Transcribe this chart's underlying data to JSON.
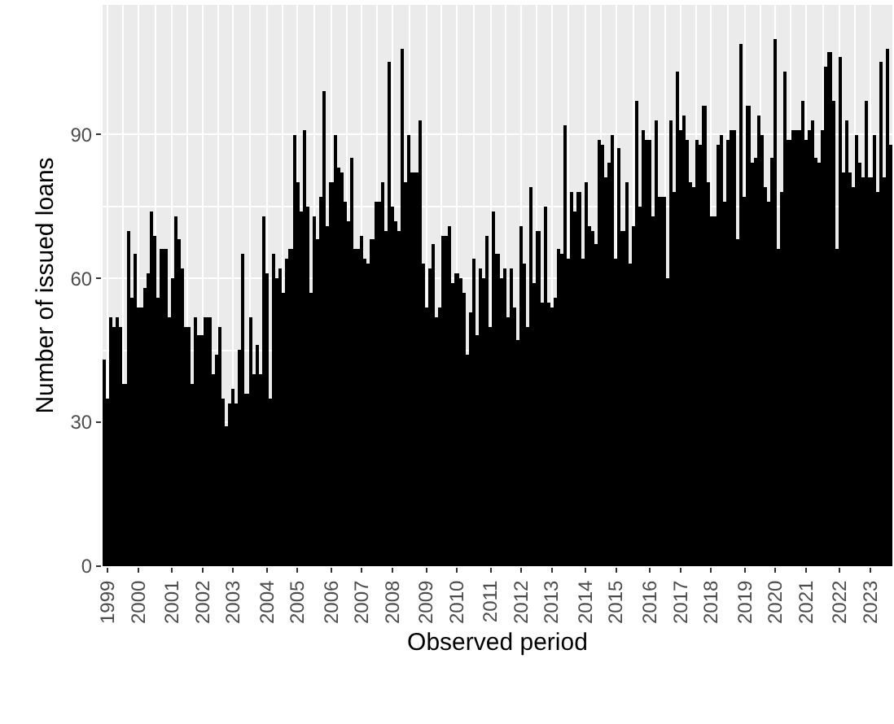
{
  "chart_data": {
    "type": "bar",
    "xlabel": "Observed period",
    "ylabel": "Number of issued loans",
    "color": "#000000",
    "grid": true,
    "ylim": [
      0,
      117
    ],
    "yticks": [
      0,
      30,
      60,
      90
    ],
    "categories": [
      null,
      "1999",
      null,
      null,
      null,
      null,
      null,
      null,
      null,
      null,
      "2000",
      null,
      null,
      null,
      null,
      null,
      null,
      null,
      null,
      null,
      "2001",
      null,
      null,
      null,
      null,
      null,
      null,
      null,
      null,
      "2002",
      null,
      null,
      null,
      null,
      null,
      null,
      null,
      null,
      "2003",
      null,
      null,
      null,
      null,
      null,
      null,
      null,
      null,
      null,
      "2004",
      null,
      null,
      null,
      null,
      null,
      null,
      null,
      null,
      "2005",
      null,
      null,
      null,
      null,
      null,
      null,
      null,
      null,
      null,
      "2006",
      null,
      null,
      null,
      null,
      null,
      null,
      null,
      null,
      "2007",
      null,
      null,
      null,
      null,
      null,
      null,
      null,
      null,
      "2008",
      null,
      null,
      null,
      null,
      null,
      null,
      null,
      null,
      null,
      "2009",
      null,
      null,
      null,
      null,
      null,
      null,
      null,
      null,
      "2010",
      null,
      null,
      null,
      null,
      null,
      null,
      null,
      null,
      null,
      "2011",
      null,
      null,
      null,
      null,
      null,
      null,
      null,
      null,
      "2012",
      null,
      null,
      null,
      null,
      null,
      null,
      null,
      null,
      "2013",
      null,
      null,
      null,
      null,
      null,
      null,
      null,
      null,
      null,
      "2014",
      null,
      null,
      null,
      null,
      null,
      null,
      null,
      null,
      "2015",
      null,
      null,
      null,
      null,
      null,
      null,
      null,
      null,
      null,
      "2016",
      null,
      null,
      null,
      null,
      null,
      null,
      null,
      null,
      "2017",
      null,
      null,
      null,
      null,
      null,
      null,
      null,
      null,
      "2018",
      null,
      null,
      null,
      null,
      null,
      null,
      null,
      null,
      null,
      "2019",
      null,
      null,
      null,
      null,
      null,
      null,
      null,
      null,
      "2020",
      null,
      null,
      null,
      null,
      null,
      null,
      null,
      null,
      "2021",
      null,
      null,
      null,
      null,
      null,
      null,
      null,
      null,
      null,
      "2022",
      null,
      null,
      null,
      null,
      null,
      null,
      null,
      null,
      "2023",
      null,
      null,
      null,
      null,
      null,
      null
    ],
    "values": [
      43,
      35,
      52,
      50,
      52,
      50,
      38,
      70,
      56,
      65,
      54,
      54,
      58,
      61,
      74,
      69,
      56,
      66,
      66,
      52,
      60,
      73,
      68,
      62,
      50,
      50,
      38,
      52,
      48,
      48,
      52,
      52,
      40,
      44,
      50,
      35,
      29,
      34,
      37,
      34,
      45,
      65,
      36,
      52,
      40,
      46,
      40,
      73,
      61,
      35,
      65,
      60,
      62,
      57,
      64,
      66,
      90,
      80,
      74,
      91,
      75,
      57,
      73,
      68,
      77,
      99,
      71,
      80,
      90,
      83,
      82,
      76,
      72,
      85,
      66,
      66,
      69,
      64,
      63,
      68,
      76,
      76,
      80,
      70,
      105,
      75,
      72,
      70,
      108,
      80,
      90,
      82,
      82,
      93,
      63,
      54,
      62,
      67,
      52,
      54,
      69,
      69,
      71,
      59,
      61,
      60,
      57,
      44,
      53,
      64,
      48,
      62,
      60,
      69,
      50,
      74,
      65,
      60,
      62,
      52,
      62,
      54,
      47,
      71,
      63,
      50,
      79,
      59,
      70,
      55,
      75,
      55,
      54,
      56,
      66,
      65,
      92,
      64,
      78,
      74,
      78,
      64,
      80,
      71,
      70,
      67,
      89,
      88,
      81,
      84,
      90,
      64,
      87,
      70,
      80,
      63,
      71,
      97,
      75,
      91,
      89,
      89,
      73,
      93,
      77,
      77,
      60,
      93,
      78,
      103,
      91,
      94,
      89,
      80,
      79,
      89,
      88,
      96,
      80,
      73,
      73,
      88,
      90,
      76,
      89,
      91,
      91,
      68,
      109,
      77,
      96,
      84,
      85,
      94,
      90,
      79,
      76,
      85,
      110,
      66,
      78,
      103,
      89,
      91,
      91,
      91,
      97,
      89,
      91,
      93,
      85,
      84,
      91,
      104,
      107,
      97,
      66,
      106,
      82,
      93,
      82,
      79,
      90,
      84,
      81,
      97,
      81,
      90,
      78,
      105,
      81,
      108,
      88
    ]
  }
}
